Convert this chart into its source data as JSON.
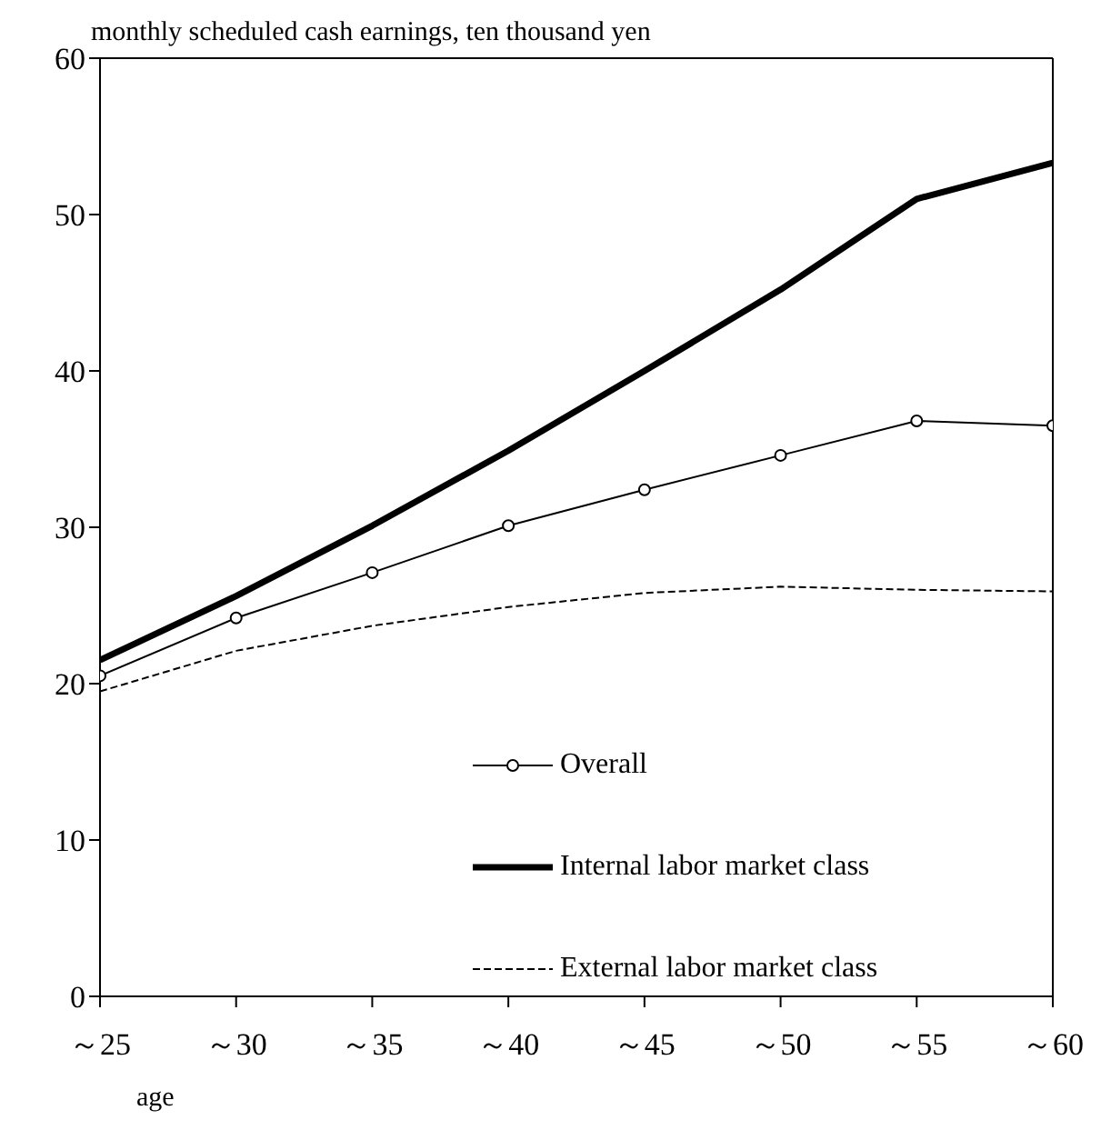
{
  "chart_data": {
    "type": "line",
    "title": "monthly  scheduled cash earnings, ten thousand yen",
    "xlabel": "age",
    "categories": [
      "～25",
      "～30",
      "～35",
      "～40",
      "～45",
      "～50",
      "～55",
      "～60"
    ],
    "ylim": [
      0,
      60
    ],
    "yticks": [
      0,
      10,
      20,
      30,
      40,
      50,
      60
    ],
    "grid": false,
    "legend": "bottom",
    "series": [
      {
        "name": "Overall",
        "color": "#000000",
        "marker": "circle",
        "line_style": "solid",
        "values": [
          20.5,
          24.2,
          27.1,
          30.1,
          32.4,
          34.6,
          36.8,
          36.5
        ]
      },
      {
        "name": "Internal labor market class",
        "color": "#000000",
        "marker": "none",
        "line_style": "solid",
        "values": [
          21.5,
          25.6,
          30.1,
          34.9,
          40.0,
          45.2,
          51.0,
          53.3
        ]
      },
      {
        "name": "External labor market class",
        "color": "#000000",
        "marker": "none",
        "line_style": "dashed",
        "values": [
          19.5,
          22.1,
          23.7,
          24.9,
          25.8,
          26.2,
          26.0,
          25.9
        ]
      }
    ]
  }
}
